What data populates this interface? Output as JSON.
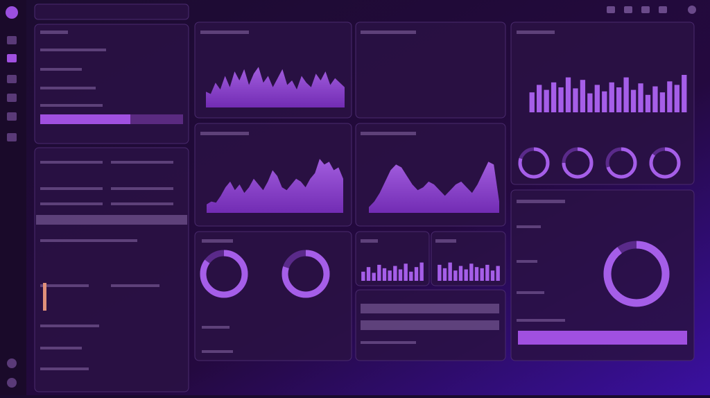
{
  "charts": {
    "traffic_area": {
      "type": "area",
      "ylim": [
        0,
        100
      ],
      "values": [
        35,
        30,
        55,
        40,
        70,
        45,
        80,
        60,
        85,
        50,
        75,
        90,
        55,
        70,
        45,
        65,
        85,
        50,
        60,
        40,
        70,
        55,
        45,
        75,
        60,
        80,
        50,
        65,
        55,
        45
      ]
    },
    "activity_bars": {
      "type": "bar",
      "ylim": [
        0,
        100
      ],
      "values": [
        40,
        55,
        45,
        60,
        50,
        70,
        48,
        65,
        38,
        55,
        42,
        60,
        50,
        70,
        45,
        58,
        35,
        52,
        40,
        62,
        55,
        75
      ]
    },
    "growth_area": {
      "type": "area",
      "ylim": [
        0,
        100
      ],
      "values": [
        15,
        20,
        18,
        30,
        45,
        55,
        40,
        50,
        35,
        45,
        60,
        50,
        40,
        55,
        75,
        65,
        45,
        40,
        50,
        60,
        55,
        45,
        60,
        70,
        95,
        85,
        90,
        75,
        80,
        60
      ]
    },
    "volume_area": {
      "type": "area",
      "ylim": [
        0,
        100
      ],
      "values": [
        10,
        20,
        35,
        55,
        75,
        85,
        80,
        65,
        50,
        40,
        45,
        55,
        50,
        40,
        30,
        40,
        50,
        55,
        45,
        35,
        50,
        70,
        90,
        85,
        20
      ]
    },
    "mini_bars_a": {
      "type": "bar",
      "ylim": [
        0,
        100
      ],
      "values": [
        40,
        60,
        35,
        70,
        55,
        45,
        65,
        50,
        75,
        40,
        60,
        80
      ]
    },
    "mini_bars_b": {
      "type": "bar",
      "ylim": [
        0,
        100
      ],
      "values": [
        70,
        55,
        80,
        45,
        65,
        50,
        75,
        60,
        55,
        70,
        45,
        65
      ]
    },
    "small_rings": {
      "type": "ring",
      "values": [
        80,
        75,
        70,
        85
      ]
    },
    "mid_rings": {
      "type": "ring",
      "values": [
        85,
        80
      ]
    },
    "big_ring": {
      "type": "ring",
      "values": [
        90
      ]
    }
  }
}
